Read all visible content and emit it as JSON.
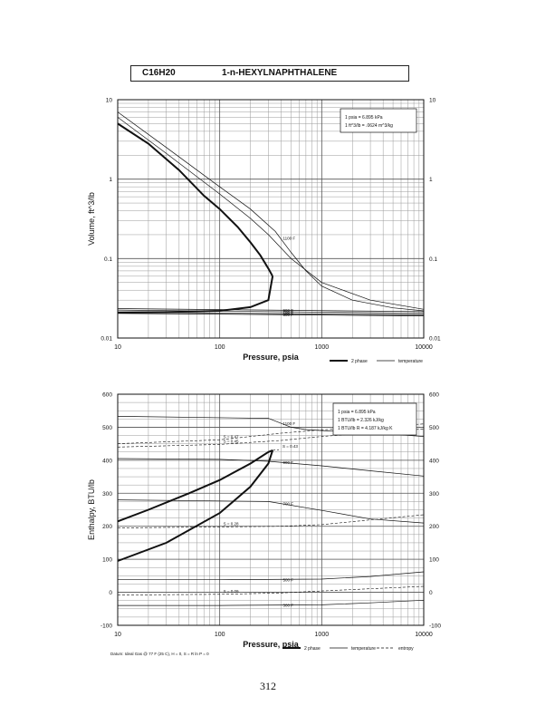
{
  "header": {
    "formula": "C16H20",
    "compound": "1-n-HEXYLNAPHTHALENE"
  },
  "page_number": "312",
  "colors": {
    "line": "#111111",
    "grid": "#555555",
    "minor_grid": "#9a9a9a"
  },
  "chart_data": [
    {
      "type": "line",
      "title": "",
      "xlabel": "Pressure,  psia",
      "ylabel": "Volume, ft^3/lb",
      "xscale": "log",
      "yscale": "log",
      "xlim": [
        10,
        10000
      ],
      "ylim": [
        0.01,
        10
      ],
      "x_ticks": [
        "10",
        "100",
        "1000",
        "10000"
      ],
      "y_ticks": [
        "0.01",
        "0.1",
        "1",
        "10"
      ],
      "conversion_box": [
        "1 psia  =  6.895 kPa",
        "1 ft^3/lb  =  .0624 m^3/kg"
      ],
      "legend": [
        "2 phase",
        "temperature"
      ],
      "two_phase": {
        "vapor": {
          "x": [
            10,
            20,
            40,
            70,
            100,
            150,
            200,
            250,
            300,
            330
          ],
          "y": [
            5.0,
            2.8,
            1.3,
            0.62,
            0.42,
            0.25,
            0.16,
            0.11,
            0.075,
            0.06
          ]
        },
        "liquid": {
          "x": [
            10,
            30,
            100,
            200,
            300,
            330
          ],
          "y": [
            0.021,
            0.0212,
            0.022,
            0.0245,
            0.03,
            0.06
          ]
        }
      },
      "isotherms": [
        {
          "label": "1100 F",
          "x": [
            10,
            30,
            100,
            200,
            350,
            500,
            700,
            1000,
            2000,
            5000,
            10000
          ],
          "y": [
            7.0,
            2.5,
            0.8,
            0.42,
            0.22,
            0.12,
            0.07,
            0.045,
            0.03,
            0.024,
            0.022
          ]
        },
        {
          "label": "",
          "x": [
            10,
            30,
            100,
            200,
            300,
            500,
            1000,
            3000,
            10000
          ],
          "y": [
            6.0,
            2.1,
            0.65,
            0.32,
            0.2,
            0.1,
            0.05,
            0.03,
            0.023
          ]
        },
        {
          "label": "900 F",
          "x": [
            10,
            10000
          ],
          "y": [
            0.0235,
            0.0215
          ]
        },
        {
          "label": "700 F",
          "x": [
            10,
            10000
          ],
          "y": [
            0.0225,
            0.0205
          ]
        },
        {
          "label": "500 F",
          "x": [
            10,
            10000
          ],
          "y": [
            0.0212,
            0.0195
          ]
        },
        {
          "label": "300 F",
          "x": [
            10,
            10000
          ],
          "y": [
            0.0205,
            0.019
          ]
        }
      ]
    },
    {
      "type": "line",
      "title": "",
      "xlabel": "Pressure,  psia",
      "ylabel": "Enthalpy, BTU/lb",
      "xscale": "log",
      "yscale": "linear",
      "xlim": [
        10,
        10000
      ],
      "ylim": [
        -100,
        600
      ],
      "x_ticks": [
        "10",
        "100",
        "1000",
        "10000"
      ],
      "y_ticks": [
        "-100",
        "0",
        "100",
        "200",
        "300",
        "400",
        "500",
        "600"
      ],
      "y_ticks_right": [
        "-100",
        "0",
        "100",
        "200",
        "300",
        "400",
        "500",
        "600"
      ],
      "conversion_box": [
        "1 psia  =  6.895 kPa",
        "1 BTU/lb  =  2.326 kJ/kg",
        "1 BTU/lb R  =  4.187 kJ/kg K"
      ],
      "datum_note": "Datum: Ideal Gas @ 77 F (25 C),  H = 0,  S = R ln P = 0",
      "legend": [
        "2 phase",
        "temperature",
        "entropy"
      ],
      "two_phase": {
        "vapor": {
          "x": [
            10,
            20,
            50,
            100,
            200,
            300,
            330
          ],
          "y": [
            215,
            250,
            300,
            340,
            390,
            425,
            430
          ]
        },
        "liquid": {
          "x": [
            10,
            30,
            100,
            200,
            300,
            330
          ],
          "y": [
            95,
            150,
            240,
            320,
            390,
            430
          ]
        }
      },
      "isotherms": [
        {
          "label": "1100 F",
          "x": [
            10,
            300,
            500,
            700,
            1000,
            3000,
            10000
          ],
          "y": [
            533,
            527,
            500,
            493,
            490,
            484,
            472
          ]
        },
        {
          "label": "900 F",
          "x": [
            10,
            100,
            300,
            1000,
            3000,
            10000
          ],
          "y": [
            405,
            403,
            397,
            383,
            368,
            352
          ]
        },
        {
          "label": "700 F",
          "x": [
            10,
            300,
            1000,
            3000,
            10000
          ],
          "y": [
            280,
            275,
            248,
            222,
            210
          ]
        },
        {
          "label": "500 F",
          "x": [
            10,
            100,
            1000,
            3000,
            10000
          ],
          "y": [
            38,
            38,
            40,
            48,
            62
          ]
        },
        {
          "label": "300 F",
          "x": [
            10,
            100,
            1000,
            3000,
            10000
          ],
          "y": [
            -40,
            -40,
            -38,
            -32,
            -24
          ]
        }
      ],
      "entropy_lines": [
        {
          "label": "S = 0.47",
          "x": [
            10,
            100,
            400,
            1000,
            10000
          ],
          "y": [
            450,
            462,
            482,
            492,
            510
          ]
        },
        {
          "label": "S = 0.45",
          "x": [
            10,
            100,
            400,
            1000,
            10000
          ],
          "y": [
            440,
            448,
            460,
            472,
            495
          ]
        },
        {
          "label": "S = 0.43",
          "x": [
            330,
            380
          ],
          "y": [
            430,
            432
          ]
        },
        {
          "label": "S = 0.28",
          "x": [
            10,
            100,
            400,
            1000,
            10000
          ],
          "y": [
            195,
            198,
            200,
            205,
            235
          ]
        },
        {
          "label": "S = 0.09",
          "x": [
            10,
            100,
            400,
            1000,
            10000
          ],
          "y": [
            -8,
            -6,
            -2,
            4,
            18
          ]
        }
      ]
    }
  ]
}
